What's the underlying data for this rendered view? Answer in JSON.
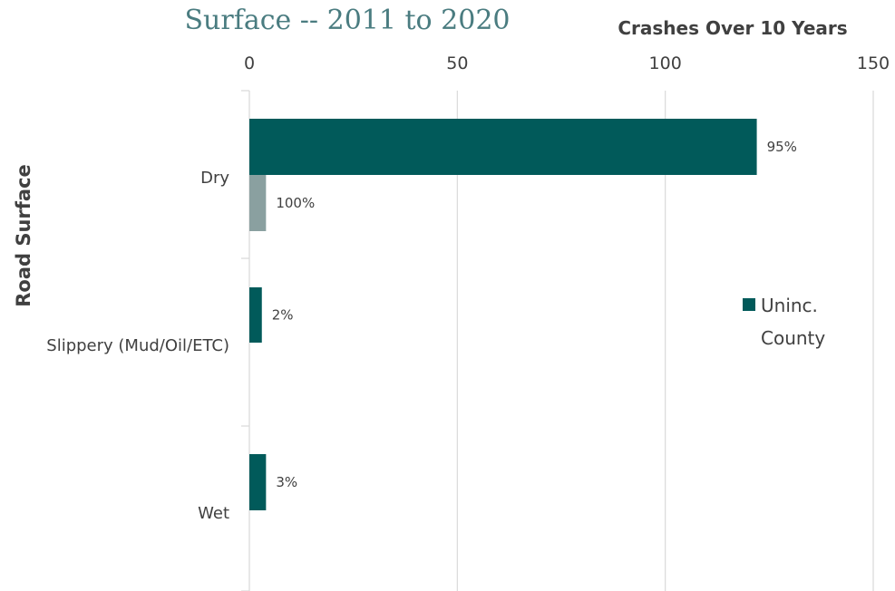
{
  "chart_data": {
    "type": "bar",
    "orientation": "horizontal",
    "title": "Surface -- 2011 to 2020",
    "xlabel": "Crashes Over 10 Years",
    "ylabel": "Road Surface",
    "xlim": [
      0,
      150
    ],
    "x_ticks": [
      "0",
      "50",
      "100",
      "150"
    ],
    "categories": [
      "Dry",
      "Slippery (Mud/Oil/ETC)",
      "Wet"
    ],
    "grid": true,
    "legend_position": "right",
    "series": [
      {
        "name": "Uninc. County",
        "color": "#015a5a",
        "values": [
          122,
          3,
          4
        ],
        "labels": [
          "95%",
          "2%",
          "3%"
        ]
      },
      {
        "color": "#8aa0a0",
        "values": [
          4,
          null,
          null
        ],
        "labels": [
          "100%",
          "",
          ""
        ]
      }
    ],
    "legend": {
      "line1": "Uninc.",
      "line2": "County"
    }
  }
}
